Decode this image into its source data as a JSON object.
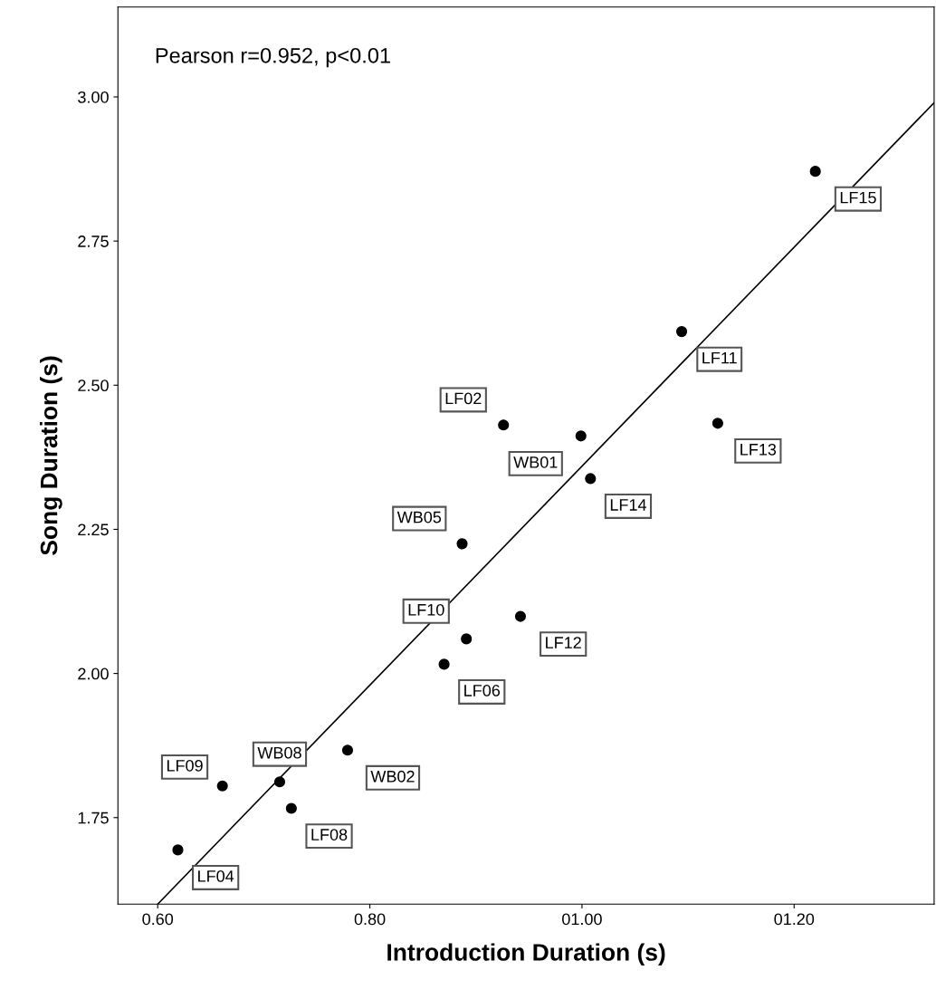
{
  "chart_data": {
    "type": "scatter",
    "xlabel": "Introduction Duration (s)",
    "ylabel": "Song Duration (s)",
    "xlim": [
      0.5625,
      1.332
    ],
    "ylim": [
      1.6,
      3.156
    ],
    "xticks": [
      {
        "value": 0.6,
        "label": "0.60"
      },
      {
        "value": 0.8,
        "label": "0.80"
      },
      {
        "value": 1.0,
        "label": "01.00"
      },
      {
        "value": 1.2,
        "label": "01.20"
      }
    ],
    "yticks": [
      {
        "value": 1.75,
        "label": "1.75"
      },
      {
        "value": 2.0,
        "label": "2.00"
      },
      {
        "value": 2.25,
        "label": "2.25"
      },
      {
        "value": 2.5,
        "label": "2.50"
      },
      {
        "value": 2.75,
        "label": "2.75"
      },
      {
        "value": 3.0,
        "label": "3.00"
      }
    ],
    "grid": false,
    "legend": false,
    "series": [
      {
        "marker": "circle",
        "color": "#000000",
        "x": [
          1.22,
          1.094,
          1.128,
          0.926,
          0.999,
          1.008,
          0.887,
          0.942,
          0.891,
          0.87,
          0.779,
          0.715,
          0.661,
          0.726,
          0.619
        ],
        "values": [
          2.871,
          2.593,
          2.434,
          2.431,
          2.412,
          2.338,
          2.225,
          2.099,
          2.06,
          2.016,
          1.867,
          1.812,
          1.805,
          1.766,
          1.694
        ]
      },
      {
        "type": "line",
        "color": "#000000",
        "x": [
          0.6,
          1.332
        ],
        "values": [
          1.6,
          2.99
        ]
      }
    ],
    "annotations": [
      "Pearson r=0.952, p<0.01",
      {
        "text": "LF15",
        "x": 1.22,
        "y": 2.871
      },
      {
        "text": "LF11",
        "x": 1.094,
        "y": 2.593
      },
      {
        "text": "LF13",
        "x": 1.128,
        "y": 2.434
      },
      {
        "text": "LF02",
        "x": 0.926,
        "y": 2.431
      },
      {
        "text": "WB01",
        "x": 0.999,
        "y": 2.412
      },
      {
        "text": "LF14",
        "x": 1.008,
        "y": 2.338
      },
      {
        "text": "WB05",
        "x": 0.887,
        "y": 2.225
      },
      {
        "text": "LF12",
        "x": 0.942,
        "y": 2.099
      },
      {
        "text": "LF10",
        "x": 0.891,
        "y": 2.06
      },
      {
        "text": "LF06",
        "x": 0.87,
        "y": 2.016
      },
      {
        "text": "WB02",
        "x": 0.779,
        "y": 1.867
      },
      {
        "text": "WB08",
        "x": 0.715,
        "y": 1.812
      },
      {
        "text": "LF09",
        "x": 0.661,
        "y": 1.805
      },
      {
        "text": "LF08",
        "x": 0.726,
        "y": 1.766
      },
      {
        "text": "LF04",
        "x": 0.619,
        "y": 1.694
      }
    ]
  }
}
